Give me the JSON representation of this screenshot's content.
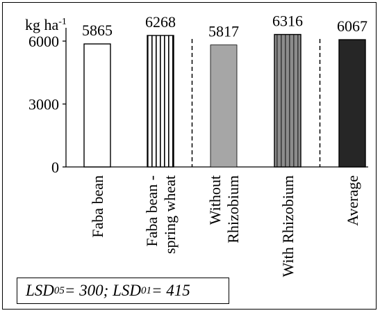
{
  "chart_data": {
    "type": "bar",
    "ylabel": "kg ha",
    "ylabel_sup": "-1",
    "ylim": [
      0,
      6500
    ],
    "yticks": [
      0,
      3000,
      6000
    ],
    "grid": false,
    "categories": [
      [
        "Faba bean"
      ],
      [
        "Faba bean -",
        "spring wheat"
      ],
      [
        "Without",
        "Rhizobium"
      ],
      [
        "With Rhizobium"
      ],
      [
        "Average"
      ]
    ],
    "values": [
      5865,
      6268,
      5817,
      6316,
      6067
    ],
    "data_labels": [
      "5865",
      "6268",
      "5817",
      "6316",
      "6067"
    ],
    "bar_styles": [
      "white",
      "vertical-stripes",
      "light-gray",
      "gray-vertical-stripes",
      "dark"
    ],
    "group_separators": "dashed vertical lines after bar 2 and bar 4",
    "colors": {
      "light_gray": "#a6a6a6",
      "mid_gray": "#8c8c8c",
      "dark": "#262626",
      "white": "#ffffff"
    }
  },
  "annotation": {
    "lsd05_label": "LSD",
    "lsd05_sub": "05",
    "lsd05_value": " = 300; ",
    "lsd01_label": "LSD",
    "lsd01_sub": "01",
    "lsd01_value": " = 415"
  }
}
